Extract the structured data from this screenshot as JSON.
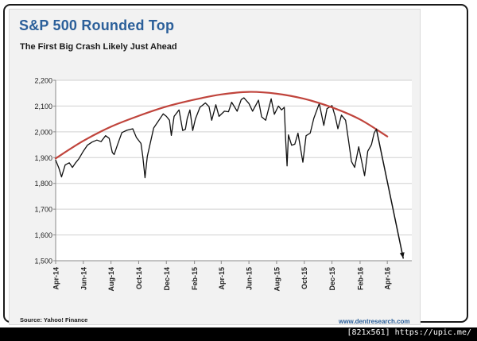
{
  "header": {
    "title": "S&P 500 Rounded Top",
    "subtitle": "The First Big Crash Likely Just Ahead"
  },
  "footer": {
    "source": "Source: Yahoo! Finance",
    "website": "www.dentresearch.com"
  },
  "watermark": "[821x561] https://upic.me/",
  "colors": {
    "title": "#2b5f9a",
    "price_line": "#111111",
    "rounded_top_curve": "#c0443c",
    "projection_arrow": "#111111",
    "gridline": "#d0d0d0",
    "plot_background": "#ffffff"
  },
  "chart_data": {
    "type": "line",
    "title": "S&P 500 Rounded Top",
    "subtitle": "The First Big Crash Likely Just Ahead",
    "xlabel": "",
    "ylabel": "",
    "x_axis": "monthly dates, labelled every second month",
    "xlim": [
      "2014-04-01",
      "2016-05-25"
    ],
    "ylim": [
      1500,
      2200
    ],
    "grid": "horizontal",
    "legend": "none",
    "x_tick_labels": [
      "Apr-14",
      "Jun-14",
      "Aug-14",
      "Oct-14",
      "Dec-14",
      "Feb-15",
      "Apr-15",
      "Jun-15",
      "Aug-15",
      "Oct-15",
      "Dec-15",
      "Feb-16",
      "Apr-16"
    ],
    "x_ticks": [
      "2014-04-01",
      "2014-06-01",
      "2014-08-01",
      "2014-10-01",
      "2014-12-01",
      "2015-02-01",
      "2015-04-01",
      "2015-06-01",
      "2015-08-01",
      "2015-10-01",
      "2015-12-01",
      "2016-02-01",
      "2016-04-01"
    ],
    "y_tick_labels": [
      "1,500",
      "1,600",
      "1,700",
      "1,800",
      "1,900",
      "2,000",
      "2,100",
      "2,200"
    ],
    "y_ticks": [
      1500,
      1600,
      1700,
      1800,
      1900,
      2000,
      2100,
      2200
    ],
    "series": [
      {
        "role": "price",
        "points": [
          [
            "2014-04-01",
            1890
          ],
          [
            "2014-04-08",
            1860
          ],
          [
            "2014-04-14",
            1825
          ],
          [
            "2014-04-22",
            1872
          ],
          [
            "2014-05-01",
            1880
          ],
          [
            "2014-05-08",
            1862
          ],
          [
            "2014-05-15",
            1880
          ],
          [
            "2014-05-22",
            1895
          ],
          [
            "2014-06-01",
            1925
          ],
          [
            "2014-06-10",
            1948
          ],
          [
            "2014-06-20",
            1960
          ],
          [
            "2014-07-01",
            1968
          ],
          [
            "2014-07-10",
            1962
          ],
          [
            "2014-07-20",
            1985
          ],
          [
            "2014-07-28",
            1975
          ],
          [
            "2014-08-04",
            1920
          ],
          [
            "2014-08-08",
            1912
          ],
          [
            "2014-08-15",
            1948
          ],
          [
            "2014-08-25",
            1997
          ],
          [
            "2014-09-05",
            2006
          ],
          [
            "2014-09-18",
            2012
          ],
          [
            "2014-09-26",
            1978
          ],
          [
            "2014-10-06",
            1955
          ],
          [
            "2014-10-10",
            1905
          ],
          [
            "2014-10-15",
            1822
          ],
          [
            "2014-10-20",
            1905
          ],
          [
            "2014-10-27",
            1960
          ],
          [
            "2014-11-03",
            2015
          ],
          [
            "2014-11-12",
            2038
          ],
          [
            "2014-11-24",
            2070
          ],
          [
            "2014-12-01",
            2060
          ],
          [
            "2014-12-08",
            2045
          ],
          [
            "2014-12-12",
            1986
          ],
          [
            "2014-12-18",
            2060
          ],
          [
            "2014-12-29",
            2085
          ],
          [
            "2015-01-06",
            2005
          ],
          [
            "2015-01-12",
            2010
          ],
          [
            "2015-01-16",
            2052
          ],
          [
            "2015-01-22",
            2085
          ],
          [
            "2015-01-28",
            2005
          ],
          [
            "2015-02-03",
            2050
          ],
          [
            "2015-02-13",
            2095
          ],
          [
            "2015-02-25",
            2112
          ],
          [
            "2015-03-05",
            2098
          ],
          [
            "2015-03-11",
            2045
          ],
          [
            "2015-03-20",
            2105
          ],
          [
            "2015-03-27",
            2060
          ],
          [
            "2015-04-08",
            2080
          ],
          [
            "2015-04-17",
            2078
          ],
          [
            "2015-04-24",
            2115
          ],
          [
            "2015-05-06",
            2080
          ],
          [
            "2015-05-15",
            2125
          ],
          [
            "2015-05-21",
            2132
          ],
          [
            "2015-06-01",
            2110
          ],
          [
            "2015-06-09",
            2080
          ],
          [
            "2015-06-22",
            2123
          ],
          [
            "2015-06-29",
            2058
          ],
          [
            "2015-07-08",
            2045
          ],
          [
            "2015-07-20",
            2128
          ],
          [
            "2015-07-27",
            2068
          ],
          [
            "2015-08-05",
            2100
          ],
          [
            "2015-08-12",
            2085
          ],
          [
            "2015-08-18",
            2095
          ],
          [
            "2015-08-21",
            1970
          ],
          [
            "2015-08-24",
            1868
          ],
          [
            "2015-08-27",
            1988
          ],
          [
            "2015-09-03",
            1948
          ],
          [
            "2015-09-10",
            1952
          ],
          [
            "2015-09-17",
            1995
          ],
          [
            "2015-09-28",
            1882
          ],
          [
            "2015-10-05",
            1985
          ],
          [
            "2015-10-14",
            1995
          ],
          [
            "2015-10-22",
            2052
          ],
          [
            "2015-11-03",
            2110
          ],
          [
            "2015-11-13",
            2025
          ],
          [
            "2015-11-20",
            2090
          ],
          [
            "2015-12-01",
            2102
          ],
          [
            "2015-12-08",
            2060
          ],
          [
            "2015-12-14",
            2012
          ],
          [
            "2015-12-22",
            2065
          ],
          [
            "2015-12-31",
            2045
          ],
          [
            "2016-01-07",
            1960
          ],
          [
            "2016-01-13",
            1885
          ],
          [
            "2016-01-20",
            1862
          ],
          [
            "2016-01-29",
            1942
          ],
          [
            "2016-02-05",
            1882
          ],
          [
            "2016-02-11",
            1830
          ],
          [
            "2016-02-18",
            1925
          ],
          [
            "2016-02-26",
            1950
          ],
          [
            "2016-03-03",
            1995
          ],
          [
            "2016-03-08",
            2012
          ]
        ]
      },
      {
        "role": "rounded_top_curve",
        "points": [
          [
            "2014-04-01",
            1897
          ],
          [
            "2014-06-01",
            1965
          ],
          [
            "2014-08-01",
            2020
          ],
          [
            "2014-10-01",
            2062
          ],
          [
            "2014-12-01",
            2098
          ],
          [
            "2015-02-01",
            2125
          ],
          [
            "2015-04-01",
            2145
          ],
          [
            "2015-06-01",
            2155
          ],
          [
            "2015-08-01",
            2148
          ],
          [
            "2015-10-01",
            2128
          ],
          [
            "2015-12-01",
            2095
          ],
          [
            "2016-02-01",
            2048
          ],
          [
            "2016-04-01",
            1982
          ]
        ]
      },
      {
        "role": "projection_arrow",
        "points": [
          [
            "2016-03-08",
            2010
          ],
          [
            "2016-05-06",
            1510
          ]
        ]
      }
    ]
  }
}
